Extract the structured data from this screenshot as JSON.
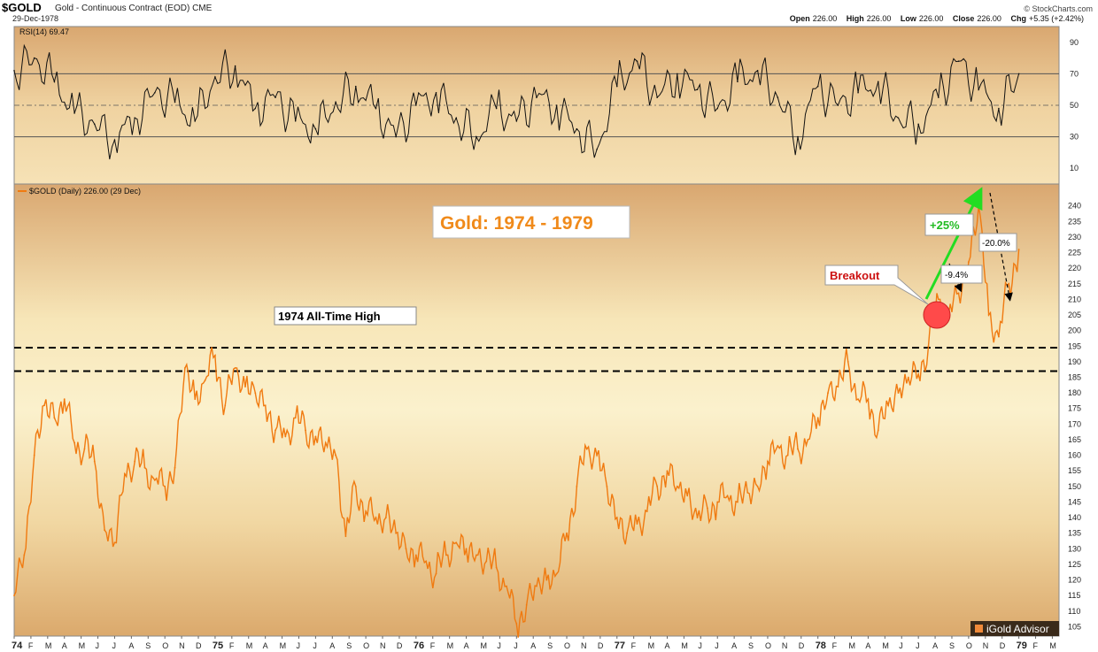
{
  "header": {
    "symbol": "$GOLD",
    "name": "Gold - Continuous Contract (EOD)",
    "exchange": "CME",
    "date": "29-Dec-1978",
    "source": "© StockCharts.com",
    "open_label": "Open",
    "open": "226.00",
    "high_label": "High",
    "high": "226.00",
    "low_label": "Low",
    "low": "226.00",
    "close_label": "Close",
    "close": "226.00",
    "chg_label": "Chg",
    "chg": "+5.35 (+2.42%)"
  },
  "colors": {
    "price_line": "#f07a10",
    "rsi_line": "#111111",
    "overbought_fill": "#4a6b2a",
    "oversold_fill": "#7a3a2a",
    "circle": "#ff4a4a",
    "arrow_green": "#22dd22",
    "title_text": "#f08a1a",
    "breakout_text": "#cc1111"
  },
  "chart_data": [
    {
      "type": "line",
      "panel": "rsi",
      "legend": "RSI(14) 69.47",
      "ylim": [
        0,
        100
      ],
      "yticks": [
        10,
        30,
        50,
        70,
        90
      ],
      "reference_lines": [
        30,
        50,
        70
      ],
      "x": [
        1974.0,
        1974.1,
        1974.2,
        1974.3,
        1974.4,
        1974.5,
        1974.6,
        1974.7,
        1974.8,
        1974.9,
        1975.0,
        1975.1,
        1975.2,
        1975.3,
        1975.4,
        1975.5,
        1975.6,
        1975.7,
        1975.8,
        1975.9,
        1976.0,
        1976.1,
        1976.2,
        1976.3,
        1976.4,
        1976.5,
        1976.6,
        1976.7,
        1976.8,
        1976.9,
        1977.0,
        1977.1,
        1977.2,
        1977.3,
        1977.4,
        1977.5,
        1977.6,
        1977.7,
        1977.8,
        1977.9,
        1978.0,
        1978.1,
        1978.2,
        1978.3,
        1978.4,
        1978.5,
        1978.6,
        1978.7,
        1978.8,
        1978.9,
        1979.0
      ],
      "values": [
        72,
        80,
        65,
        45,
        38,
        28,
        42,
        58,
        52,
        40,
        68,
        75,
        48,
        55,
        40,
        35,
        52,
        62,
        48,
        30,
        50,
        58,
        42,
        30,
        48,
        40,
        55,
        50,
        35,
        22,
        62,
        78,
        55,
        70,
        60,
        48,
        65,
        72,
        55,
        30,
        62,
        50,
        58,
        65,
        42,
        38,
        55,
        78,
        60,
        48,
        70
      ]
    },
    {
      "type": "line",
      "panel": "price",
      "title": "Gold: 1974 - 1979",
      "legend": "$GOLD (Daily) 226.00 (29 Dec)",
      "ylim": [
        102,
        247
      ],
      "yticks": [
        105,
        110,
        115,
        120,
        125,
        130,
        135,
        140,
        145,
        150,
        155,
        160,
        165,
        170,
        175,
        180,
        185,
        190,
        195,
        200,
        205,
        210,
        215,
        220,
        225,
        230,
        235,
        240
      ],
      "xticks": [
        "74",
        "F",
        "M",
        "A",
        "M",
        "J",
        "J",
        "A",
        "S",
        "O",
        "N",
        "D",
        "75",
        "F",
        "M",
        "A",
        "M",
        "J",
        "J",
        "A",
        "S",
        "O",
        "N",
        "D",
        "76",
        "F",
        "M",
        "A",
        "M",
        "J",
        "J",
        "A",
        "S",
        "O",
        "N",
        "D",
        "77",
        "F",
        "M",
        "A",
        "M",
        "J",
        "J",
        "A",
        "S",
        "O",
        "N",
        "D",
        "78",
        "F",
        "M",
        "A",
        "M",
        "J",
        "J",
        "A",
        "S",
        "O",
        "N",
        "D",
        "79",
        "F",
        "M"
      ],
      "x": [
        1974.0,
        1974.05,
        1974.1,
        1974.15,
        1974.2,
        1974.25,
        1974.3,
        1974.35,
        1974.4,
        1974.45,
        1974.5,
        1974.55,
        1974.6,
        1974.65,
        1974.7,
        1974.75,
        1974.8,
        1974.85,
        1974.9,
        1974.95,
        1975.0,
        1975.05,
        1975.1,
        1975.15,
        1975.2,
        1975.25,
        1975.3,
        1975.35,
        1975.4,
        1975.45,
        1975.5,
        1975.55,
        1975.6,
        1975.65,
        1975.7,
        1975.75,
        1975.8,
        1975.85,
        1975.9,
        1975.95,
        1976.0,
        1976.05,
        1976.1,
        1976.15,
        1976.2,
        1976.25,
        1976.3,
        1976.35,
        1976.4,
        1976.45,
        1976.5,
        1976.55,
        1976.6,
        1976.65,
        1976.7,
        1976.75,
        1976.8,
        1976.85,
        1976.9,
        1976.95,
        1977.0,
        1977.05,
        1977.1,
        1977.15,
        1977.2,
        1977.25,
        1977.3,
        1977.35,
        1977.4,
        1977.45,
        1977.5,
        1977.55,
        1977.6,
        1977.65,
        1977.7,
        1977.75,
        1977.8,
        1977.85,
        1977.9,
        1977.95,
        1978.0,
        1978.05,
        1978.1,
        1978.15,
        1978.2,
        1978.25,
        1978.3,
        1978.35,
        1978.4,
        1978.45,
        1978.5,
        1978.55,
        1978.6,
        1978.65,
        1978.7,
        1978.75,
        1978.8,
        1978.85,
        1978.9,
        1978.95,
        1979.0
      ],
      "values": [
        115,
        128,
        160,
        176,
        172,
        178,
        164,
        162,
        158,
        136,
        132,
        154,
        158,
        156,
        152,
        150,
        156,
        188,
        178,
        184,
        192,
        176,
        188,
        182,
        180,
        176,
        168,
        166,
        172,
        168,
        166,
        164,
        160,
        134,
        150,
        142,
        140,
        140,
        135,
        130,
        128,
        126,
        122,
        128,
        132,
        130,
        128,
        126,
        124,
        118,
        106,
        112,
        118,
        120,
        122,
        135,
        150,
        162,
        160,
        150,
        140,
        135,
        138,
        142,
        150,
        155,
        150,
        147,
        140,
        143,
        145,
        147,
        145,
        148,
        150,
        158,
        163,
        160,
        162,
        165,
        172,
        180,
        182,
        190,
        178,
        178,
        168,
        176,
        180,
        185,
        186,
        195,
        210,
        205,
        212,
        222,
        240,
        205,
        198,
        215,
        226
      ]
    }
  ],
  "annotations": {
    "title": "Gold: 1974 - 1979",
    "ath_label": "1974 All-Time High",
    "ath_levels": [
      194.5,
      187
    ],
    "breakout_label": "Breakout",
    "pct_up": "+25%",
    "pct_down1": "-9.4%",
    "pct_down2": "-20.0%"
  },
  "watermark": "iGold Advisor"
}
